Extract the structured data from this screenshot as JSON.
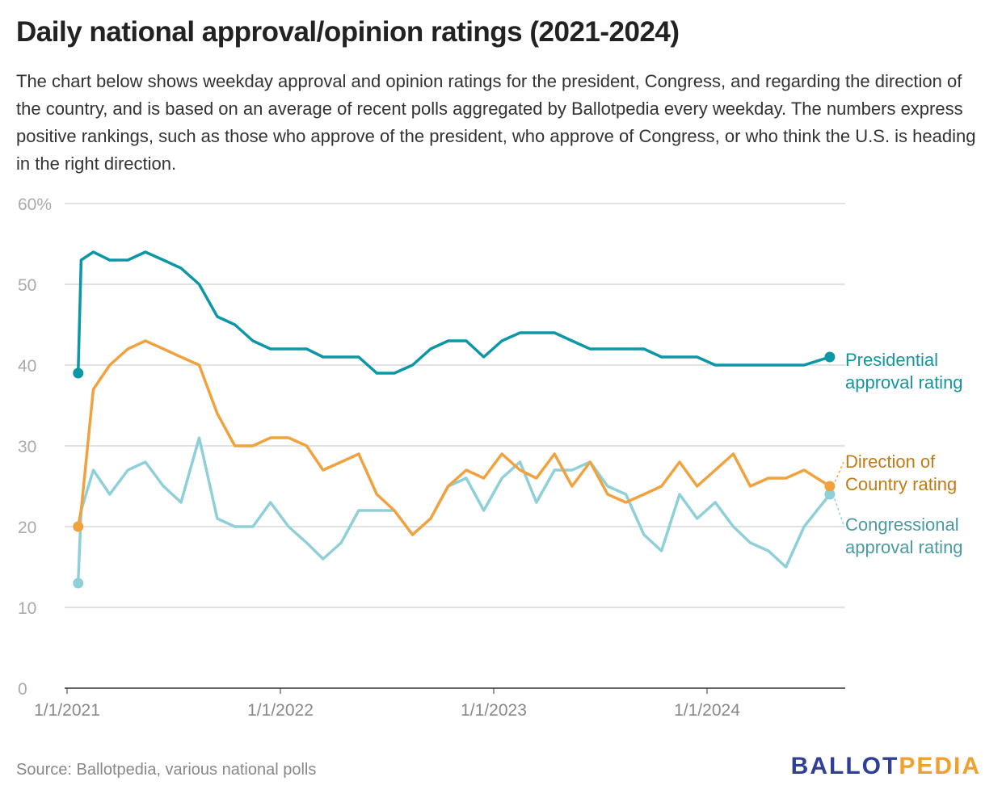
{
  "title": "Daily national approval/opinion ratings (2021-2024)",
  "subtitle": "The chart below shows weekday approval and opinion ratings for the president, Congress, and regarding the direction of the country, and is based on an average of recent polls aggregated by Ballotpedia every weekday. The numbers express positive rankings, such as those who approve of the president, who approve of Congress, or who think the U.S. is heading in the right direction.",
  "source": "Source: Ballotpedia, various national polls",
  "logo": {
    "part1": "BALLOT",
    "part2": "PEDIA"
  },
  "chart_data": {
    "type": "line",
    "ylim": [
      0,
      60
    ],
    "yticks": [
      0,
      10,
      20,
      30,
      40,
      50,
      60
    ],
    "ytick_labels": [
      "0",
      "10",
      "20",
      "30",
      "40",
      "50",
      "60%"
    ],
    "xticks": [
      "2021-01-01",
      "2022-01-01",
      "2023-01-01",
      "2024-01-01"
    ],
    "xtick_labels": [
      "1/1/2021",
      "1/1/2022",
      "1/1/2023",
      "1/1/2024"
    ],
    "xlim": [
      "2021-01-01",
      "2024-08-31"
    ],
    "grid": true,
    "x": [
      "2021-01-20",
      "2021-01-25",
      "2021-02-15",
      "2021-03-15",
      "2021-04-15",
      "2021-05-15",
      "2021-06-15",
      "2021-07-15",
      "2021-08-15",
      "2021-09-15",
      "2021-10-15",
      "2021-11-15",
      "2021-12-15",
      "2022-01-15",
      "2022-02-15",
      "2022-03-15",
      "2022-04-15",
      "2022-05-15",
      "2022-06-15",
      "2022-07-15",
      "2022-08-15",
      "2022-09-15",
      "2022-10-15",
      "2022-11-15",
      "2022-12-15",
      "2023-01-15",
      "2023-02-15",
      "2023-03-15",
      "2023-04-15",
      "2023-05-15",
      "2023-06-15",
      "2023-07-15",
      "2023-08-15",
      "2023-09-15",
      "2023-10-15",
      "2023-11-15",
      "2023-12-15",
      "2024-01-15",
      "2024-02-15",
      "2024-03-15",
      "2024-04-15",
      "2024-05-15",
      "2024-06-15",
      "2024-07-29"
    ],
    "series": [
      {
        "name": "Presidential approval rating",
        "color": "#0b97a5",
        "label_color": "#17959f",
        "values": [
          39,
          53,
          54,
          53,
          53,
          54,
          53,
          52,
          50,
          46,
          45,
          43,
          42,
          42,
          42,
          41,
          41,
          41,
          39,
          39,
          40,
          42,
          43,
          43,
          41,
          43,
          44,
          44,
          44,
          43,
          42,
          42,
          42,
          42,
          41,
          41,
          41,
          40,
          40,
          40,
          40,
          40,
          40,
          41
        ]
      },
      {
        "name": "Direction of Country rating",
        "color": "#f0a23f",
        "label_color": "#c27b14",
        "values": [
          20,
          22,
          37,
          40,
          42,
          43,
          42,
          41,
          40,
          34,
          30,
          30,
          31,
          31,
          30,
          27,
          28,
          29,
          24,
          22,
          19,
          21,
          25,
          27,
          26,
          29,
          27,
          26,
          29,
          25,
          28,
          24,
          23,
          24,
          25,
          28,
          25,
          27,
          29,
          25,
          26,
          26,
          27,
          25
        ]
      },
      {
        "name": "Congressional approval rating",
        "color": "#8fd0d8",
        "label_color": "#4a9aa5",
        "values": [
          13,
          22,
          27,
          24,
          27,
          28,
          25,
          23,
          31,
          21,
          20,
          20,
          23,
          20,
          18,
          16,
          18,
          22,
          22,
          22,
          19,
          21,
          25,
          26,
          22,
          26,
          28,
          23,
          27,
          27,
          28,
          25,
          24,
          19,
          17,
          24,
          21,
          23,
          20,
          18,
          17,
          15,
          20,
          24
        ]
      }
    ]
  }
}
